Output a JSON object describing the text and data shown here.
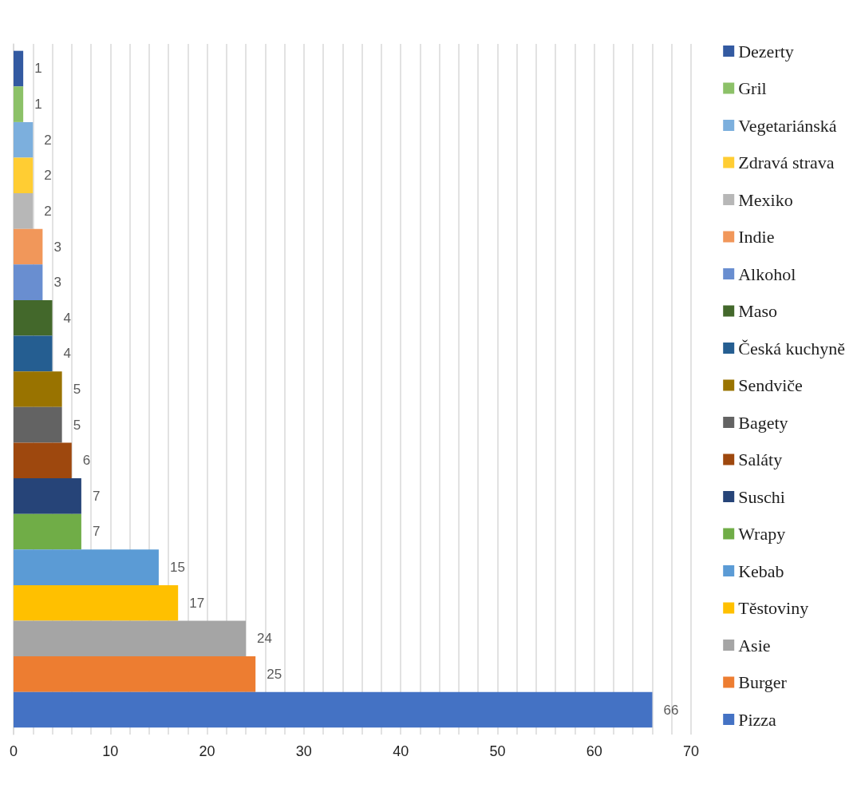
{
  "chart_data": {
    "type": "bar",
    "orientation": "horizontal",
    "categories": [
      null
    ],
    "series": [
      {
        "name": "Dezerty",
        "color": "#335aa1",
        "values": [
          1
        ]
      },
      {
        "name": "Gril",
        "color": "#8cc168",
        "values": [
          1
        ]
      },
      {
        "name": "Vegetariánská",
        "color": "#7cafdd",
        "values": [
          2
        ]
      },
      {
        "name": "Zdravá strava",
        "color": "#ffcd33",
        "values": [
          2
        ]
      },
      {
        "name": "Mexiko",
        "color": "#b7b7b7",
        "values": [
          2
        ]
      },
      {
        "name": "Indie",
        "color": "#f1975a",
        "values": [
          3
        ]
      },
      {
        "name": "Alkohol",
        "color": "#698ed0",
        "values": [
          3
        ]
      },
      {
        "name": "Maso",
        "color": "#43682b",
        "values": [
          4
        ]
      },
      {
        "name": "Česká kuchyně",
        "color": "#255e91",
        "values": [
          4
        ]
      },
      {
        "name": "Sendviče",
        "color": "#997300",
        "values": [
          5
        ]
      },
      {
        "name": "Bagety",
        "color": "#636363",
        "values": [
          5
        ]
      },
      {
        "name": "Saláty",
        "color": "#9e480e",
        "values": [
          6
        ]
      },
      {
        "name": "Suschi",
        "color": "#264478",
        "values": [
          7
        ]
      },
      {
        "name": "Wrapy",
        "color": "#70ad47",
        "values": [
          7
        ]
      },
      {
        "name": "Kebab",
        "color": "#5b9bd5",
        "values": [
          15
        ]
      },
      {
        "name": "Těstoviny",
        "color": "#ffc000",
        "values": [
          17
        ]
      },
      {
        "name": "Asie",
        "color": "#a5a5a5",
        "values": [
          24
        ]
      },
      {
        "name": "Burger",
        "color": "#ed7d31",
        "values": [
          25
        ]
      },
      {
        "name": "Pizza",
        "color": "#4472c4",
        "values": [
          66
        ]
      }
    ],
    "xlim": [
      0,
      70
    ],
    "xticks": [
      0,
      {
        "value": 2,
        "label": null
      },
      {
        "value": 4,
        "label": null
      },
      {
        "value": 6,
        "label": null
      },
      {
        "value": 8,
        "label": null
      },
      10,
      {
        "value": 12,
        "label": null
      },
      {
        "value": 14,
        "label": null
      },
      {
        "value": 16,
        "label": null
      },
      {
        "value": 18,
        "label": null
      },
      20,
      {
        "value": 22,
        "label": null
      },
      {
        "value": 24,
        "label": null
      },
      {
        "value": 26,
        "label": null
      },
      {
        "value": 28,
        "label": null
      },
      30,
      {
        "value": 32,
        "label": null
      },
      {
        "value": 34,
        "label": null
      },
      {
        "value": 36,
        "label": null
      },
      {
        "value": 38,
        "label": null
      },
      40,
      {
        "value": 42,
        "label": null
      },
      {
        "value": 44,
        "label": null
      },
      {
        "value": 46,
        "label": null
      },
      {
        "value": 48,
        "label": null
      },
      50,
      {
        "value": 52,
        "label": null
      },
      {
        "value": 54,
        "label": null
      },
      {
        "value": 56,
        "label": null
      },
      {
        "value": 58,
        "label": null
      },
      60,
      {
        "value": 62,
        "label": null
      },
      {
        "value": 64,
        "label": null
      },
      {
        "value": 66,
        "label": null
      },
      {
        "value": 68,
        "label": null
      },
      70
    ],
    "grid": "x",
    "legend": "right",
    "data_labels": true
  }
}
